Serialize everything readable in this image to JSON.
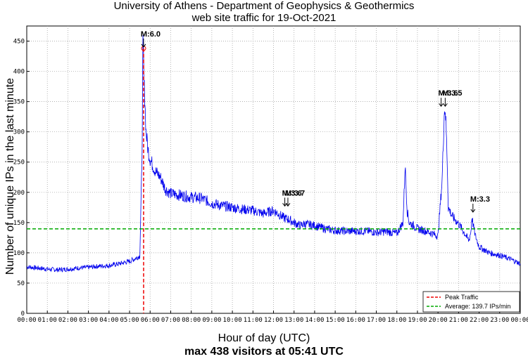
{
  "chart_data": {
    "type": "line",
    "title": "University of Athens - Department of Geophysics & Geothermics",
    "subtitle": "web site traffic for 19-Oct-2021",
    "xlabel": "Hour of day (UTC)",
    "xsublabel": "max 438 visitors at 05:41 UTC",
    "ylabel": "Number of unique IPs in the last minute",
    "xlim": [
      0,
      24
    ],
    "ylim": [
      0,
      475
    ],
    "xticks": [
      "00:00",
      "01:00",
      "02:00",
      "03:00",
      "04:00",
      "05:00",
      "06:00",
      "07:00",
      "08:00",
      "09:00",
      "10:00",
      "11:00",
      "12:00",
      "13:00",
      "14:00",
      "15:00",
      "16:00",
      "17:00",
      "18:00",
      "19:00",
      "20:00",
      "21:00",
      "22:00",
      "23:00",
      "00:00"
    ],
    "yticks": [
      0,
      50,
      100,
      150,
      200,
      250,
      300,
      350,
      400,
      450
    ],
    "grid": true,
    "legend_position": "bottom-right",
    "colors": {
      "traffic": "#0000ee",
      "peak": "#ee0000",
      "average": "#00aa00"
    },
    "series": [
      {
        "style": "line",
        "x": [
          0,
          0.5,
          1,
          1.5,
          2,
          2.5,
          3,
          3.5,
          4,
          4.5,
          5,
          5.25,
          5.5,
          5.6,
          5.65,
          5.68,
          5.7,
          5.75,
          5.8,
          5.9,
          6,
          6.25,
          6.5,
          6.75,
          7,
          7.5,
          8,
          8.5,
          9,
          9.5,
          10,
          10.5,
          11,
          11.5,
          12,
          12.5,
          12.75,
          13,
          13.3,
          13.5,
          14,
          14.5,
          15,
          15.5,
          16,
          16.5,
          17,
          17.5,
          18,
          18.3,
          18.4,
          18.5,
          18.6,
          19,
          19.5,
          20,
          20.2,
          20.3,
          20.35,
          20.4,
          20.45,
          20.5,
          20.7,
          21,
          21.3,
          21.5,
          21.6,
          21.65,
          21.7,
          21.8,
          22,
          22.5,
          23,
          23.5,
          24
        ],
        "y": [
          77,
          75,
          73,
          72,
          73,
          75,
          76,
          78,
          79,
          82,
          86,
          90,
          95,
          250,
          438,
          420,
          380,
          350,
          300,
          270,
          255,
          235,
          225,
          205,
          198,
          195,
          192,
          190,
          182,
          178,
          175,
          172,
          170,
          165,
          170,
          158,
          155,
          150,
          145,
          148,
          145,
          140,
          137,
          136,
          136,
          136,
          134,
          135,
          132,
          150,
          245,
          170,
          150,
          140,
          135,
          128,
          220,
          330,
          340,
          300,
          250,
          175,
          160,
          148,
          132,
          120,
          135,
          160,
          148,
          130,
          110,
          100,
          96,
          90,
          82
        ]
      }
    ],
    "reference_lines": [
      {
        "name": "Peak Traffic",
        "orientation": "vertical",
        "value": 5.683,
        "style": "dashed"
      },
      {
        "name": "Average: 139.7 IPs/min",
        "orientation": "horizontal",
        "value": 139.7,
        "style": "dashed"
      }
    ],
    "annotations": [
      {
        "label": "M:6.0",
        "x": 5.68,
        "y": 438
      },
      {
        "label": "M:3.6",
        "x": 12.55,
        "y": 175
      },
      {
        "label": "M:3.7",
        "x": 12.7,
        "y": 175
      },
      {
        "label": "M:3.6",
        "x": 20.15,
        "y": 340
      },
      {
        "label": "M:3.5",
        "x": 20.35,
        "y": 340
      },
      {
        "label": "M:3.3",
        "x": 21.7,
        "y": 165
      }
    ]
  }
}
